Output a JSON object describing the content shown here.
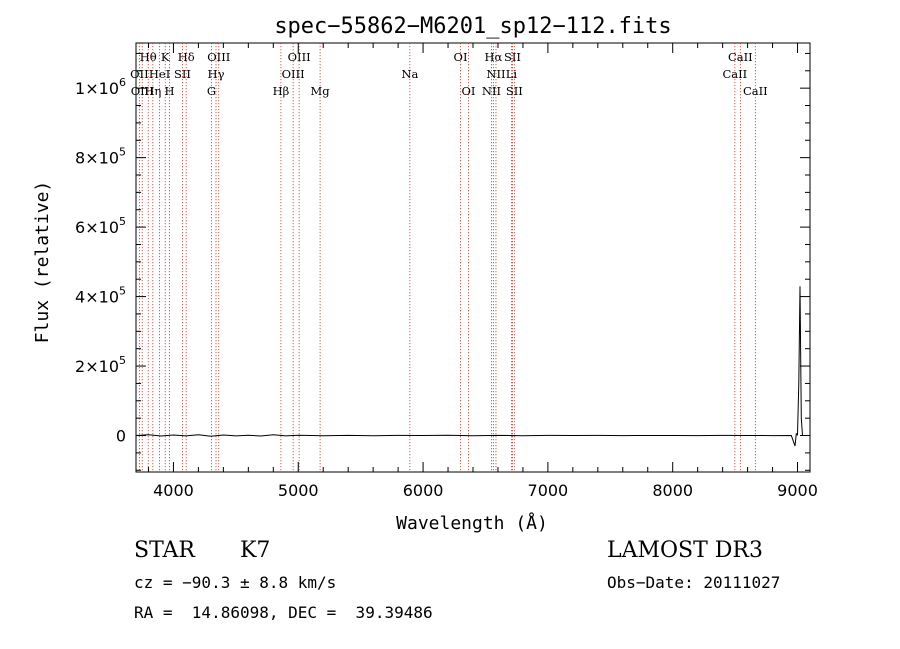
{
  "chart_data": {
    "type": "line",
    "title": "spec−55862−M6201_sp12−112.fits",
    "xlabel": "Wavelength (Å)",
    "ylabel": "Flux (relative)",
    "xlim": [
      3700,
      9100
    ],
    "ylim": [
      -105000,
      1130000
    ],
    "x_ticks": [
      4000,
      5000,
      6000,
      7000,
      8000,
      9000
    ],
    "y_ticks": [
      {
        "value": 0,
        "mant": "0",
        "exp": ""
      },
      {
        "value": 200000,
        "mant": "2×10",
        "exp": "5"
      },
      {
        "value": 400000,
        "mant": "4×10",
        "exp": "5"
      },
      {
        "value": 600000,
        "mant": "6×10",
        "exp": "5"
      },
      {
        "value": 800000,
        "mant": "8×10",
        "exp": "5"
      },
      {
        "value": 1000000,
        "mant": "1×10",
        "exp": "6"
      }
    ],
    "series": [
      {
        "x": [
          3700,
          3800,
          3900,
          4000,
          4100,
          4200,
          4300,
          4400,
          4500,
          4600,
          4700,
          4800,
          4900,
          5000,
          5200,
          5400,
          5600,
          5800,
          6000,
          6200,
          6400,
          6600,
          6800,
          7000,
          7200,
          7400,
          7600,
          7800,
          8000,
          8200,
          8400,
          8600,
          8800,
          8950,
          8980,
          8990,
          9000,
          9010,
          9020,
          9030,
          9040,
          9050,
          9060
        ],
        "y": [
          0,
          2000,
          -1500,
          1500,
          -1000,
          2000,
          -2000,
          1500,
          -1000,
          1000,
          -1500,
          2000,
          -1000,
          1000,
          -500,
          500,
          -500,
          500,
          0,
          800,
          -800,
          500,
          -500,
          300,
          0,
          500,
          -300,
          200,
          0,
          -300,
          300,
          0,
          -200,
          0,
          -30000,
          5000,
          2000,
          150000,
          430000,
          50000,
          0,
          0,
          0
        ]
      }
    ],
    "lines": [
      {
        "label": "Hθ",
        "x": 3798,
        "row": 1
      },
      {
        "label": "OII",
        "x": 3727,
        "row": 2
      },
      {
        "label": "OIII",
        "x": 3750,
        "row": 3
      },
      {
        "label": "K",
        "x": 3934,
        "row": 1
      },
      {
        "label": "HeI",
        "x": 3889,
        "row": 2
      },
      {
        "label": "Hη",
        "x": 3835,
        "row": 3
      },
      {
        "label": "SII",
        "x": 4072,
        "row": 2
      },
      {
        "label": "H",
        "x": 3969,
        "row": 3
      },
      {
        "label": "Hδ",
        "x": 4102,
        "row": 1
      },
      {
        "label": "OIII",
        "x": 4363,
        "row": 1
      },
      {
        "label": "Hγ",
        "x": 4341,
        "row": 2
      },
      {
        "label": "G",
        "x": 4305,
        "row": 3
      },
      {
        "label": "OIII",
        "x": 5007,
        "row": 1
      },
      {
        "label": "OIII",
        "x": 4959,
        "row": 2
      },
      {
        "label": "Hβ",
        "x": 4861,
        "row": 3
      },
      {
        "label": "Mg",
        "x": 5175,
        "row": 3
      },
      {
        "label": "Na",
        "x": 5894,
        "row": 2
      },
      {
        "label": "OI",
        "x": 6300,
        "row": 1
      },
      {
        "label": "OI",
        "x": 6364,
        "row": 3
      },
      {
        "label": "Hα",
        "x": 6563,
        "row": 1
      },
      {
        "label": "NII",
        "x": 6584,
        "row": 2
      },
      {
        "label": "NII",
        "x": 6548,
        "row": 3
      },
      {
        "label": "SII",
        "x": 6716,
        "row": 1
      },
      {
        "label": "Li",
        "x": 6708,
        "row": 2
      },
      {
        "label": "SII",
        "x": 6731,
        "row": 3
      },
      {
        "label": "CaII",
        "x": 8542,
        "row": 1
      },
      {
        "label": "CaII",
        "x": 8498,
        "row": 2
      },
      {
        "label": "CaII",
        "x": 8662,
        "row": 3
      }
    ]
  },
  "info": {
    "class": "STAR",
    "subclass": "K7",
    "survey": "LAMOST DR3",
    "cz": "cz = −90.3 ± 8.8 km/s",
    "obs_date": "Obs−Date: 20111027",
    "coords": "RA =  14.86098, DEC =  39.39486"
  },
  "colors": {
    "axis": "#000000",
    "lines": "#c0392b",
    "spectrum": "#000000"
  }
}
